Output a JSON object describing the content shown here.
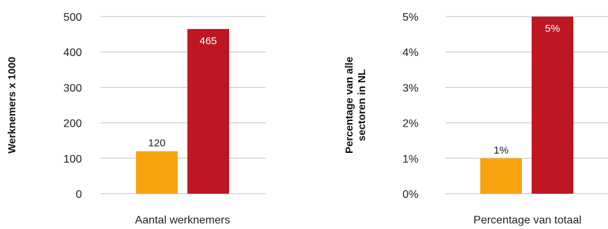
{
  "chart_data": [
    {
      "type": "bar",
      "ylabel": "Werknemers x 1000",
      "xlabel": "Aantal werknemers",
      "yticks": [
        "0",
        "100",
        "200",
        "300",
        "400",
        "500"
      ],
      "ylim": [
        0,
        500
      ],
      "grid": true,
      "values": [
        120,
        465
      ],
      "data_labels": [
        "120",
        "465"
      ],
      "colors": [
        "#FBA30F",
        "#BE1622"
      ],
      "label_colors": [
        "#222222",
        "#ffffff"
      ]
    },
    {
      "type": "bar",
      "ylabel": "Percentage van alle sectoren in NL",
      "xlabel": "Percentage van totaal",
      "yticks": [
        "0%",
        "1%",
        "2%",
        "3%",
        "4%",
        "5%"
      ],
      "ylim": [
        0,
        5
      ],
      "grid": true,
      "values": [
        1,
        5
      ],
      "data_labels": [
        "1%",
        "5%"
      ],
      "colors": [
        "#FBA30F",
        "#BE1622"
      ],
      "label_colors": [
        "#222222",
        "#ffffff"
      ]
    }
  ]
}
